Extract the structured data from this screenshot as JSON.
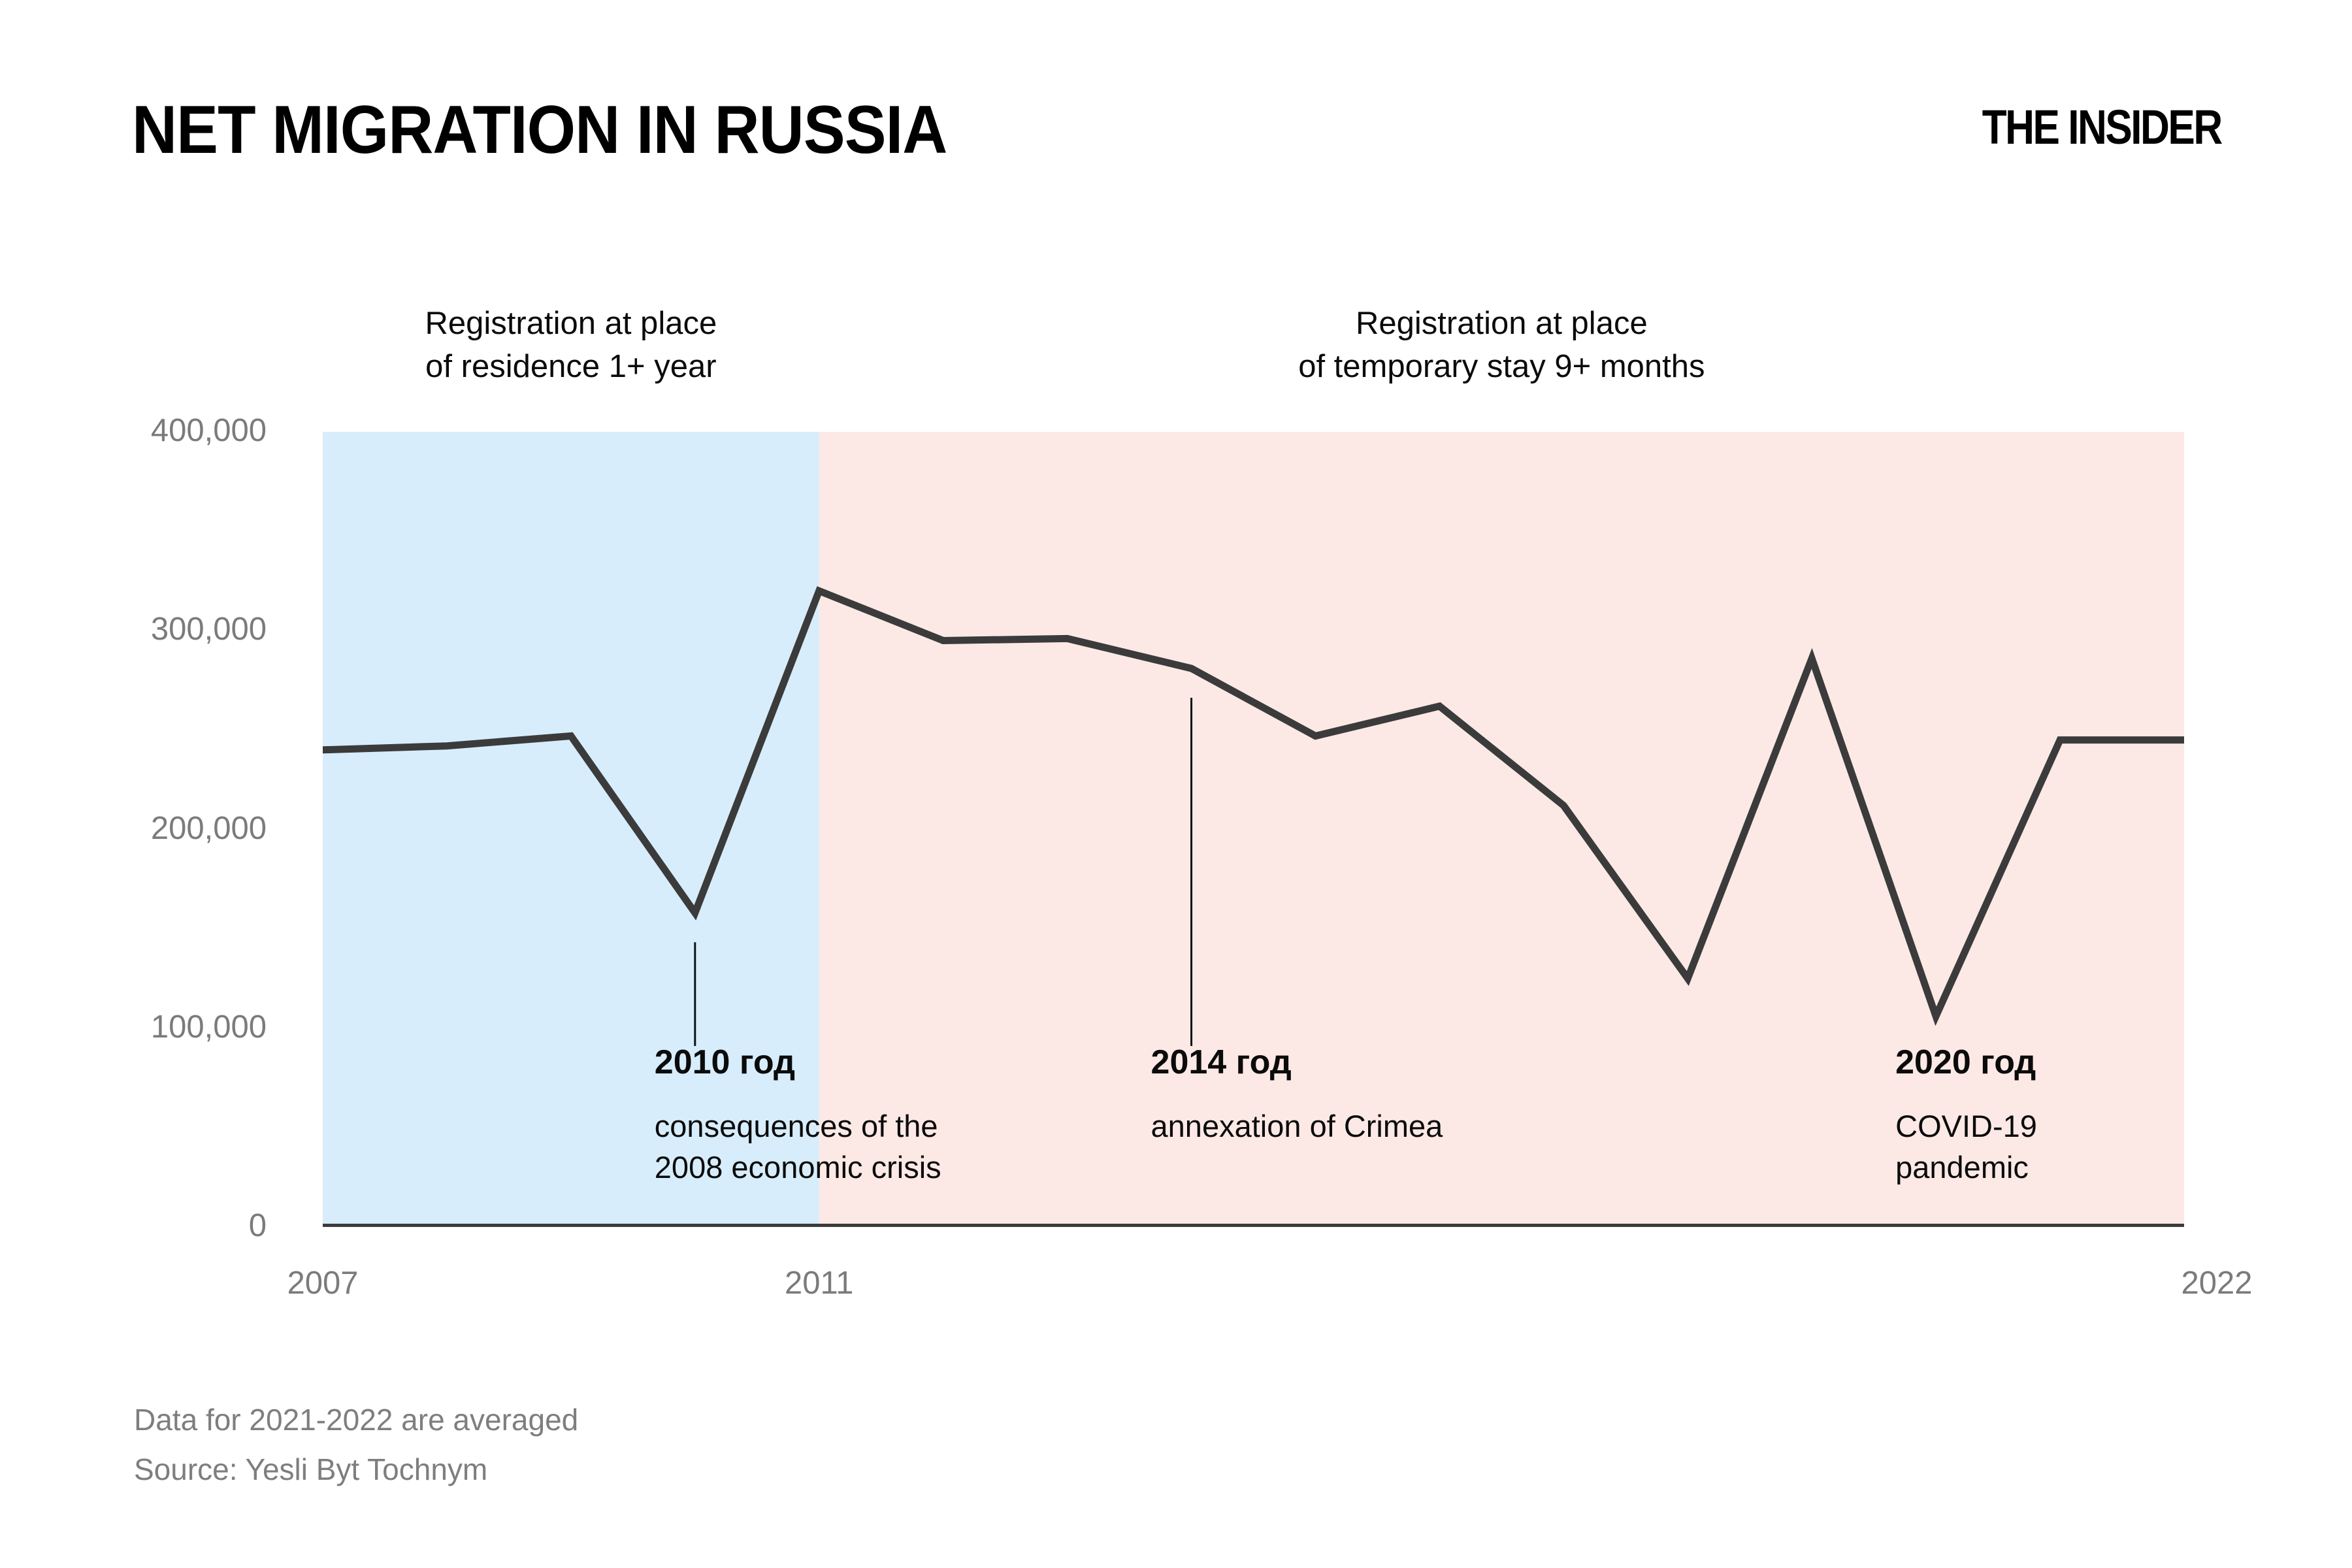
{
  "header": {
    "title": "NET MIGRATION IN RUSSIA",
    "logo": "THE INSIDER"
  },
  "footer": {
    "note": "Data for 2021-2022 are averaged",
    "source": "Source: Yesli Byt Tochnym"
  },
  "chart_data": {
    "type": "line",
    "title": "NET MIGRATION IN RUSSIA",
    "x": [
      2007,
      2008,
      2009,
      2010,
      2011,
      2012,
      2013,
      2014,
      2015,
      2016,
      2017,
      2018,
      2019,
      2020,
      2021,
      2022
    ],
    "values": [
      240000,
      242000,
      247000,
      158000,
      320000,
      295000,
      296000,
      281000,
      247000,
      262000,
      212000,
      125000,
      286000,
      106000,
      245000,
      245000
    ],
    "ylim": [
      0,
      400000
    ],
    "yticks": [
      {
        "value": 400000,
        "label": "400,000"
      },
      {
        "value": 300000,
        "label": "300,000"
      },
      {
        "value": 200000,
        "label": "200,000"
      },
      {
        "value": 100000,
        "label": "100,000"
      },
      {
        "value": 0,
        "label": "0"
      }
    ],
    "xticks": [
      {
        "year": 2007,
        "label": "2007"
      },
      {
        "year": 2011,
        "label": "2011"
      },
      {
        "year": 2022,
        "label": "2022"
      }
    ],
    "grid": false,
    "legend": "none",
    "regions": [
      {
        "from": 2007,
        "to": 2011,
        "color": "#D7EDFB",
        "label_line1": "Registration at place",
        "label_line2": "of residence 1+ year"
      },
      {
        "from": 2011,
        "to": 2022,
        "color": "#FCE9E5",
        "label_line1": "Registration at place",
        "label_line2": "of temporary stay 9+ months"
      }
    ],
    "annotations": [
      {
        "year": 2010,
        "title": "2010 год",
        "lines": [
          "consequences of the",
          "2008 economic crisis"
        ],
        "connector": true
      },
      {
        "year": 2014,
        "title": "2014 год",
        "lines": [
          "annexation of Crimea"
        ],
        "connector": true
      },
      {
        "year": 2020,
        "title": "2020 год",
        "lines": [
          "COVID-19",
          "pandemic"
        ],
        "connector": false
      }
    ],
    "colors": {
      "line": "#3B3B3B",
      "axis": "#3B3B3B",
      "connector": "#111111",
      "tick_text": "#7B7B7B",
      "annotation_text": "#0B0B0B"
    }
  }
}
